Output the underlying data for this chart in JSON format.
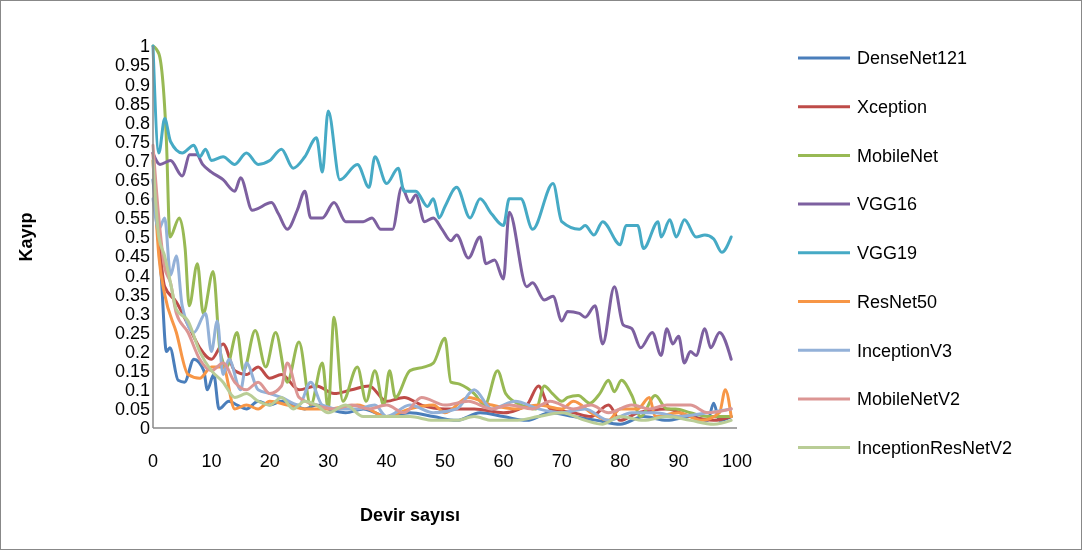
{
  "chart_data": {
    "type": "line",
    "xlabel": "Devir sayısı",
    "ylabel": "Kayıp",
    "xlim": [
      0,
      100
    ],
    "xticks": [
      0,
      10,
      20,
      30,
      40,
      50,
      60,
      70,
      80,
      90,
      100
    ],
    "ylim": [
      0,
      1
    ],
    "yticks": [
      0,
      0.05,
      0.1,
      0.15,
      0.2,
      0.25,
      0.3,
      0.35,
      0.4,
      0.45,
      0.5,
      0.55,
      0.6,
      0.65,
      0.7,
      0.75,
      0.8,
      0.85,
      0.9,
      0.95,
      1
    ],
    "grid": false,
    "legend": "right",
    "marker": "none",
    "line_style": "solid",
    "series": [
      {
        "name": "DenseNet121",
        "color": "#4a7ebb",
        "x": [
          0,
          1.4,
          2.3,
          2.9,
          4.3,
          5.4,
          7,
          8.7,
          9.3,
          10.4,
          11.3,
          13,
          14.4,
          16,
          18,
          20,
          22,
          24,
          26,
          28,
          30,
          33,
          36,
          40,
          44,
          48,
          52,
          56,
          60,
          64,
          68,
          72,
          76,
          80,
          84,
          88,
          92,
          95,
          96,
          97,
          99
        ],
        "values": [
          0.65,
          0.4,
          0.2,
          0.21,
          0.125,
          0.12,
          0.18,
          0.15,
          0.1,
          0.14,
          0.05,
          0.07,
          0.06,
          0.05,
          0.07,
          0.06,
          0.07,
          0.06,
          0.05,
          0.06,
          0.05,
          0.04,
          0.05,
          0.03,
          0.04,
          0.03,
          0.02,
          0.04,
          0.03,
          0.02,
          0.04,
          0.03,
          0.02,
          0.01,
          0.03,
          0.02,
          0.03,
          0.02,
          0.065,
          0.02,
          0.03
        ]
      },
      {
        "name": "Xception",
        "color": "#be4b48",
        "x": [
          0,
          1,
          2,
          4,
          6,
          8,
          10,
          12,
          14,
          16,
          18,
          20,
          22,
          25,
          28,
          31,
          34,
          37,
          40,
          43,
          46,
          50,
          55,
          60,
          64,
          66,
          68,
          72,
          75,
          78,
          80,
          83,
          88,
          92,
          96,
          99
        ],
        "values": [
          0.72,
          0.5,
          0.37,
          0.33,
          0.27,
          0.21,
          0.18,
          0.22,
          0.15,
          0.14,
          0.16,
          0.13,
          0.14,
          0.1,
          0.11,
          0.09,
          0.1,
          0.11,
          0.07,
          0.08,
          0.06,
          0.05,
          0.05,
          0.04,
          0.06,
          0.11,
          0.05,
          0.04,
          0.03,
          0.06,
          0.02,
          0.04,
          0.05,
          0.03,
          0.02,
          0.03
        ]
      },
      {
        "name": "MobileNet",
        "color": "#98b954",
        "x": [
          0,
          1,
          2.3,
          2.9,
          4.5,
          5.5,
          6.2,
          7.6,
          8.6,
          10.3,
          11.5,
          12.6,
          14.4,
          15.5,
          17.5,
          19.3,
          21,
          23,
          25,
          27,
          29,
          30,
          31,
          32.5,
          35,
          36.5,
          38,
          39.5,
          40.5,
          41.5,
          44,
          46.5,
          48,
          50,
          51,
          52.5,
          55,
          56.8,
          59,
          60.4,
          63,
          65.6,
          67,
          68.4,
          70,
          71,
          72.8,
          74.8,
          76.5,
          78,
          79,
          80.2,
          82,
          83.5,
          86,
          88,
          89.5,
          92,
          95,
          99
        ],
        "values": [
          1,
          0.98,
          0.75,
          0.5,
          0.55,
          0.47,
          0.32,
          0.43,
          0.3,
          0.41,
          0.2,
          0.16,
          0.25,
          0.15,
          0.255,
          0.16,
          0.25,
          0.12,
          0.225,
          0.06,
          0.17,
          0.05,
          0.29,
          0.07,
          0.16,
          0.07,
          0.15,
          0.06,
          0.15,
          0.08,
          0.15,
          0.16,
          0.17,
          0.235,
          0.12,
          0.115,
          0.09,
          0.06,
          0.15,
          0.09,
          0.06,
          0.05,
          0.11,
          0.09,
          0.07,
          0.08,
          0.085,
          0.065,
          0.09,
          0.125,
          0.095,
          0.125,
          0.085,
          0.03,
          0.085,
          0.05,
          0.05,
          0.04,
          0.03,
          0.03
        ]
      },
      {
        "name": "VGG16",
        "color": "#7d60a0",
        "x": [
          0,
          1.2,
          3,
          5,
          6.3,
          7.5,
          8.5,
          10,
          12,
          14,
          15,
          17,
          20.3,
          21.5,
          23,
          24.7,
          26,
          27,
          29,
          31,
          33,
          36,
          37.5,
          39,
          41,
          42.6,
          44,
          45,
          46.5,
          48,
          49.5,
          51,
          52,
          54,
          56,
          57,
          58.5,
          60,
          61,
          64,
          65,
          67,
          68.5,
          70,
          71,
          73,
          74,
          75.7,
          77,
          79,
          80.5,
          82,
          83.5,
          85.5,
          87,
          88,
          89,
          90,
          91,
          92,
          93,
          94.5,
          95.5,
          97,
          99
        ],
        "values": [
          0.72,
          0.69,
          0.7,
          0.66,
          0.715,
          0.715,
          0.69,
          0.67,
          0.65,
          0.62,
          0.655,
          0.57,
          0.59,
          0.56,
          0.52,
          0.57,
          0.62,
          0.55,
          0.55,
          0.59,
          0.54,
          0.54,
          0.55,
          0.52,
          0.52,
          0.63,
          0.59,
          0.61,
          0.54,
          0.55,
          0.52,
          0.49,
          0.505,
          0.445,
          0.5,
          0.43,
          0.44,
          0.39,
          0.565,
          0.37,
          0.38,
          0.335,
          0.345,
          0.28,
          0.305,
          0.3,
          0.29,
          0.32,
          0.22,
          0.37,
          0.27,
          0.26,
          0.21,
          0.25,
          0.19,
          0.26,
          0.22,
          0.24,
          0.17,
          0.2,
          0.19,
          0.26,
          0.21,
          0.25,
          0.18
        ]
      },
      {
        "name": "VGG19",
        "color": "#46aac5",
        "x": [
          0,
          1,
          2,
          3,
          5,
          7,
          8,
          9,
          10,
          12,
          14,
          16,
          18,
          20,
          22,
          24,
          26,
          28,
          29,
          30,
          32,
          35,
          37,
          38,
          40,
          42,
          43,
          45,
          47,
          48,
          49,
          50,
          52,
          54.3,
          56,
          58,
          60,
          61,
          63,
          65,
          68.5,
          70,
          73,
          74,
          75.5,
          77,
          80,
          81,
          83,
          84,
          86.5,
          87,
          88.5,
          89.6,
          91,
          93,
          94.5,
          96,
          97.4,
          99
        ],
        "values": [
          1,
          0.72,
          0.81,
          0.75,
          0.72,
          0.74,
          0.71,
          0.73,
          0.7,
          0.71,
          0.69,
          0.72,
          0.69,
          0.7,
          0.73,
          0.68,
          0.71,
          0.76,
          0.67,
          0.83,
          0.65,
          0.69,
          0.63,
          0.71,
          0.64,
          0.68,
          0.62,
          0.62,
          0.58,
          0.6,
          0.55,
          0.58,
          0.63,
          0.55,
          0.6,
          0.56,
          0.53,
          0.6,
          0.6,
          0.52,
          0.64,
          0.54,
          0.52,
          0.53,
          0.505,
          0.54,
          0.48,
          0.53,
          0.53,
          0.47,
          0.54,
          0.5,
          0.545,
          0.5,
          0.545,
          0.5,
          0.505,
          0.495,
          0.46,
          0.5
        ]
      },
      {
        "name": "ResNet50",
        "color": "#f79646",
        "x": [
          0,
          1,
          2,
          4,
          6,
          8,
          10,
          12,
          14,
          16,
          18,
          20,
          23,
          26,
          30,
          35,
          40,
          44,
          48,
          50,
          54,
          58,
          62,
          66,
          70,
          72,
          75,
          78,
          80,
          83,
          85,
          86,
          90,
          94,
          97,
          98,
          99
        ],
        "values": [
          0.7,
          0.45,
          0.35,
          0.25,
          0.14,
          0.13,
          0.16,
          0.16,
          0.05,
          0.06,
          0.05,
          0.07,
          0.06,
          0.05,
          0.05,
          0.06,
          0.03,
          0.05,
          0.06,
          0.04,
          0.08,
          0.06,
          0.05,
          0.06,
          0.05,
          0.07,
          0.04,
          0.02,
          0.05,
          0.05,
          0.08,
          0.03,
          0.04,
          0.02,
          0.04,
          0.1,
          0.03
        ]
      },
      {
        "name": "InceptionV3",
        "color": "#93b1d8",
        "x": [
          0,
          1,
          2,
          3,
          4,
          5,
          7,
          9,
          10,
          11,
          12,
          13,
          15,
          16,
          18,
          20,
          22,
          25,
          27,
          29,
          32,
          35,
          38,
          40,
          44,
          48,
          52,
          55,
          58,
          62,
          66,
          70,
          74,
          78,
          82,
          86,
          90,
          95,
          99
        ],
        "values": [
          0.6,
          0.52,
          0.55,
          0.4,
          0.45,
          0.32,
          0.25,
          0.3,
          0.2,
          0.28,
          0.14,
          0.18,
          0.1,
          0.17,
          0.1,
          0.09,
          0.08,
          0.06,
          0.12,
          0.06,
          0.05,
          0.05,
          0.06,
          0.03,
          0.06,
          0.04,
          0.05,
          0.1,
          0.05,
          0.07,
          0.05,
          0.04,
          0.05,
          0.02,
          0.04,
          0.04,
          0.03,
          0.04,
          0.05
        ]
      },
      {
        "name": "MobileNetV2",
        "color": "#dc9694",
        "x": [
          0,
          1,
          2,
          3,
          4,
          6,
          8,
          10,
          12,
          14,
          16,
          18,
          20,
          22,
          23,
          25,
          28,
          31,
          34,
          37,
          40,
          43,
          46,
          50,
          54,
          58,
          61,
          65,
          68,
          72,
          75,
          78,
          82,
          85,
          88,
          92,
          95,
          99
        ],
        "values": [
          0.74,
          0.55,
          0.42,
          0.38,
          0.3,
          0.25,
          0.18,
          0.15,
          0.17,
          0.12,
          0.1,
          0.12,
          0.09,
          0.11,
          0.17,
          0.08,
          0.06,
          0.05,
          0.06,
          0.05,
          0.06,
          0.04,
          0.08,
          0.06,
          0.07,
          0.05,
          0.06,
          0.05,
          0.07,
          0.05,
          0.06,
          0.04,
          0.06,
          0.05,
          0.06,
          0.06,
          0.04,
          0.05
        ]
      },
      {
        "name": "InceptionResNetV2",
        "color": "#b9cd96",
        "x": [
          0,
          1,
          2,
          3,
          4,
          6,
          8,
          10,
          12,
          14,
          16,
          18,
          20,
          22,
          24,
          26,
          28,
          30,
          33,
          36,
          40,
          44,
          48,
          52,
          55,
          58,
          62,
          66,
          70,
          74,
          77,
          80,
          84,
          88,
          92,
          96,
          99
        ],
        "values": [
          0.7,
          0.5,
          0.45,
          0.38,
          0.31,
          0.28,
          0.2,
          0.15,
          0.12,
          0.08,
          0.09,
          0.07,
          0.06,
          0.08,
          0.05,
          0.07,
          0.06,
          0.04,
          0.06,
          0.03,
          0.03,
          0.03,
          0.02,
          0.02,
          0.03,
          0.02,
          0.02,
          0.03,
          0.04,
          0.02,
          0.01,
          0.03,
          0.02,
          0.03,
          0.02,
          0.01,
          0.02
        ]
      }
    ]
  }
}
